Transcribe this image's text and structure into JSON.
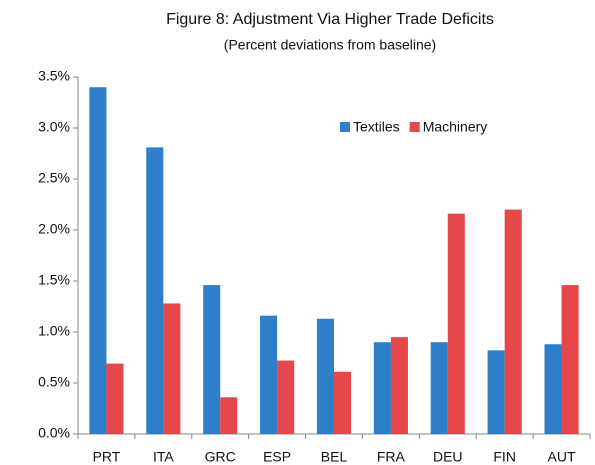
{
  "chart_data": {
    "type": "bar",
    "title": "Figure 8: Adjustment  Via Higher Trade Deficits",
    "subtitle": "(Percent deviations from baseline)",
    "categories": [
      "PRT",
      "ITA",
      "GRC",
      "ESP",
      "BEL",
      "FRA",
      "DEU",
      "FIN",
      "AUT"
    ],
    "series": [
      {
        "name": "Textiles",
        "color": "#2f7ec9",
        "values": [
          3.4,
          2.81,
          1.46,
          1.16,
          1.13,
          0.9,
          0.9,
          0.82,
          0.88
        ]
      },
      {
        "name": "Machinery",
        "color": "#e5474b",
        "values": [
          0.69,
          1.28,
          0.36,
          0.72,
          0.61,
          0.95,
          2.16,
          2.2,
          1.46
        ]
      }
    ],
    "ylim": [
      0,
      3.5
    ],
    "yticks": [
      {
        "value": 0,
        "label": "0.0%"
      },
      {
        "value": 0.5,
        "label": "0.5%"
      },
      {
        "value": 1,
        "label": "1.0%"
      },
      {
        "value": 1.5,
        "label": "1.5%"
      },
      {
        "value": 2,
        "label": "2.0%"
      },
      {
        "value": 2.5,
        "label": "2.5%"
      },
      {
        "value": 3,
        "label": "3.0%"
      },
      {
        "value": 3.5,
        "label": "3.5%"
      }
    ],
    "grid": false,
    "legend": "upper right"
  }
}
